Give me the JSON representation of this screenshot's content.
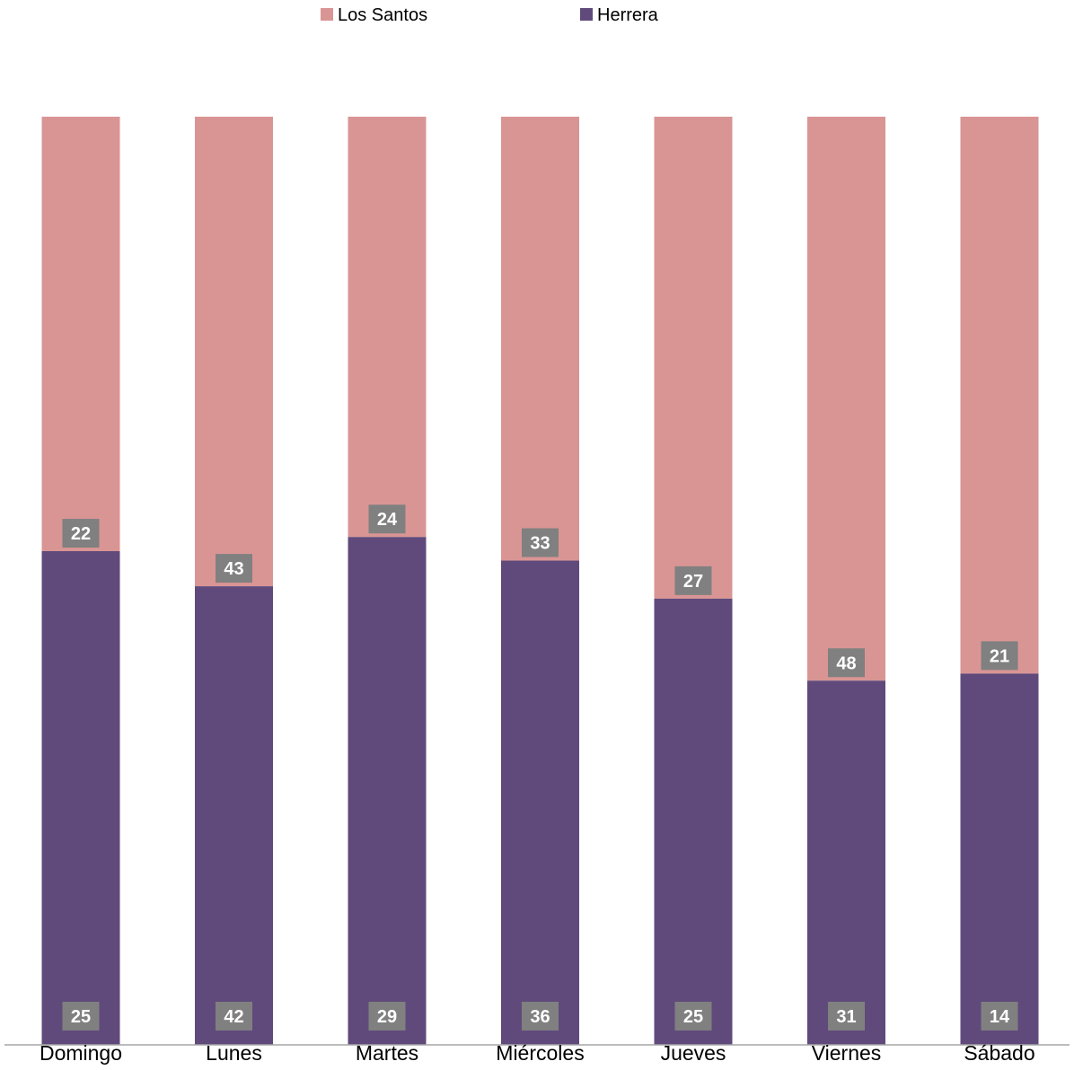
{
  "chart_data": {
    "type": "bar",
    "stacking": "100% stacked",
    "title": "",
    "xlabel": "",
    "ylabel": "",
    "ylim": [
      0,
      1
    ],
    "grid": false,
    "legend_position": "top",
    "categories": [
      "Domingo",
      "Lunes",
      "Martes",
      "Miércoles",
      "Jueves",
      "Viernes",
      "Sábado"
    ],
    "series": [
      {
        "name": "Herrera",
        "values": [
          25,
          42,
          29,
          36,
          25,
          31,
          14
        ],
        "color": "#604A7B"
      },
      {
        "name": "Los Santos",
        "values": [
          22,
          43,
          24,
          33,
          27,
          48,
          21
        ],
        "color": "#D99594"
      }
    ],
    "label_box_color": "#808080",
    "label_text_color": "#ffffff",
    "axis_line_color": "#A6A6A6"
  }
}
